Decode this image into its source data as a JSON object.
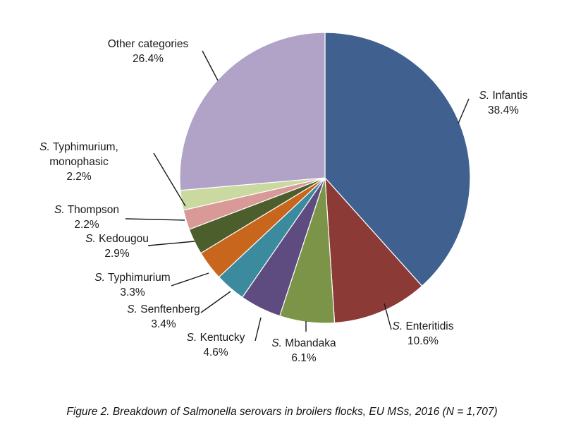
{
  "chart_data": {
    "type": "pie",
    "title": "",
    "start": "top, clockwise",
    "slices": [
      {
        "prefix": "S.",
        "name": "Infantis",
        "lines": [],
        "pct_label": "38.4%",
        "value": 38.4,
        "color": "#406190"
      },
      {
        "prefix": "S.",
        "name": "Enteritidis",
        "lines": [],
        "pct_label": "10.6%",
        "value": 10.6,
        "color": "#8b3a36"
      },
      {
        "prefix": "S.",
        "name": "Mbandaka",
        "lines": [],
        "pct_label": "6.1%",
        "value": 6.1,
        "color": "#7b9447"
      },
      {
        "prefix": "S.",
        "name": "Kentucky",
        "lines": [],
        "pct_label": "4.6%",
        "value": 4.6,
        "color": "#5e4b80"
      },
      {
        "prefix": "S.",
        "name": "Senftenberg",
        "lines": [],
        "pct_label": "3.4%",
        "value": 3.4,
        "color": "#3c8a9e"
      },
      {
        "prefix": "S.",
        "name": "Typhimurium",
        "lines": [],
        "pct_label": "3.3%",
        "value": 3.3,
        "color": "#c7661c"
      },
      {
        "prefix": "S.",
        "name": "Kedougou",
        "lines": [],
        "pct_label": "2.9%",
        "value": 2.9,
        "color": "#4b5e2c"
      },
      {
        "prefix": "S.",
        "name": "Thompson",
        "lines": [],
        "pct_label": "2.2%",
        "value": 2.2,
        "color": "#d99a97"
      },
      {
        "prefix": "S.",
        "name": "Typhimurium,",
        "lines": [
          "monophasic"
        ],
        "pct_label": "2.2%",
        "value": 2.2,
        "color": "#c9d9a0"
      },
      {
        "prefix": "",
        "name": "Other categories",
        "lines": [],
        "pct_label": "26.4%",
        "value": 26.4,
        "color": "#b0a3c7"
      }
    ]
  },
  "caption": "Figure 2. Breakdown of Salmonella serovars in broilers flocks, EU MSs, 2016 (N = 1,707)"
}
